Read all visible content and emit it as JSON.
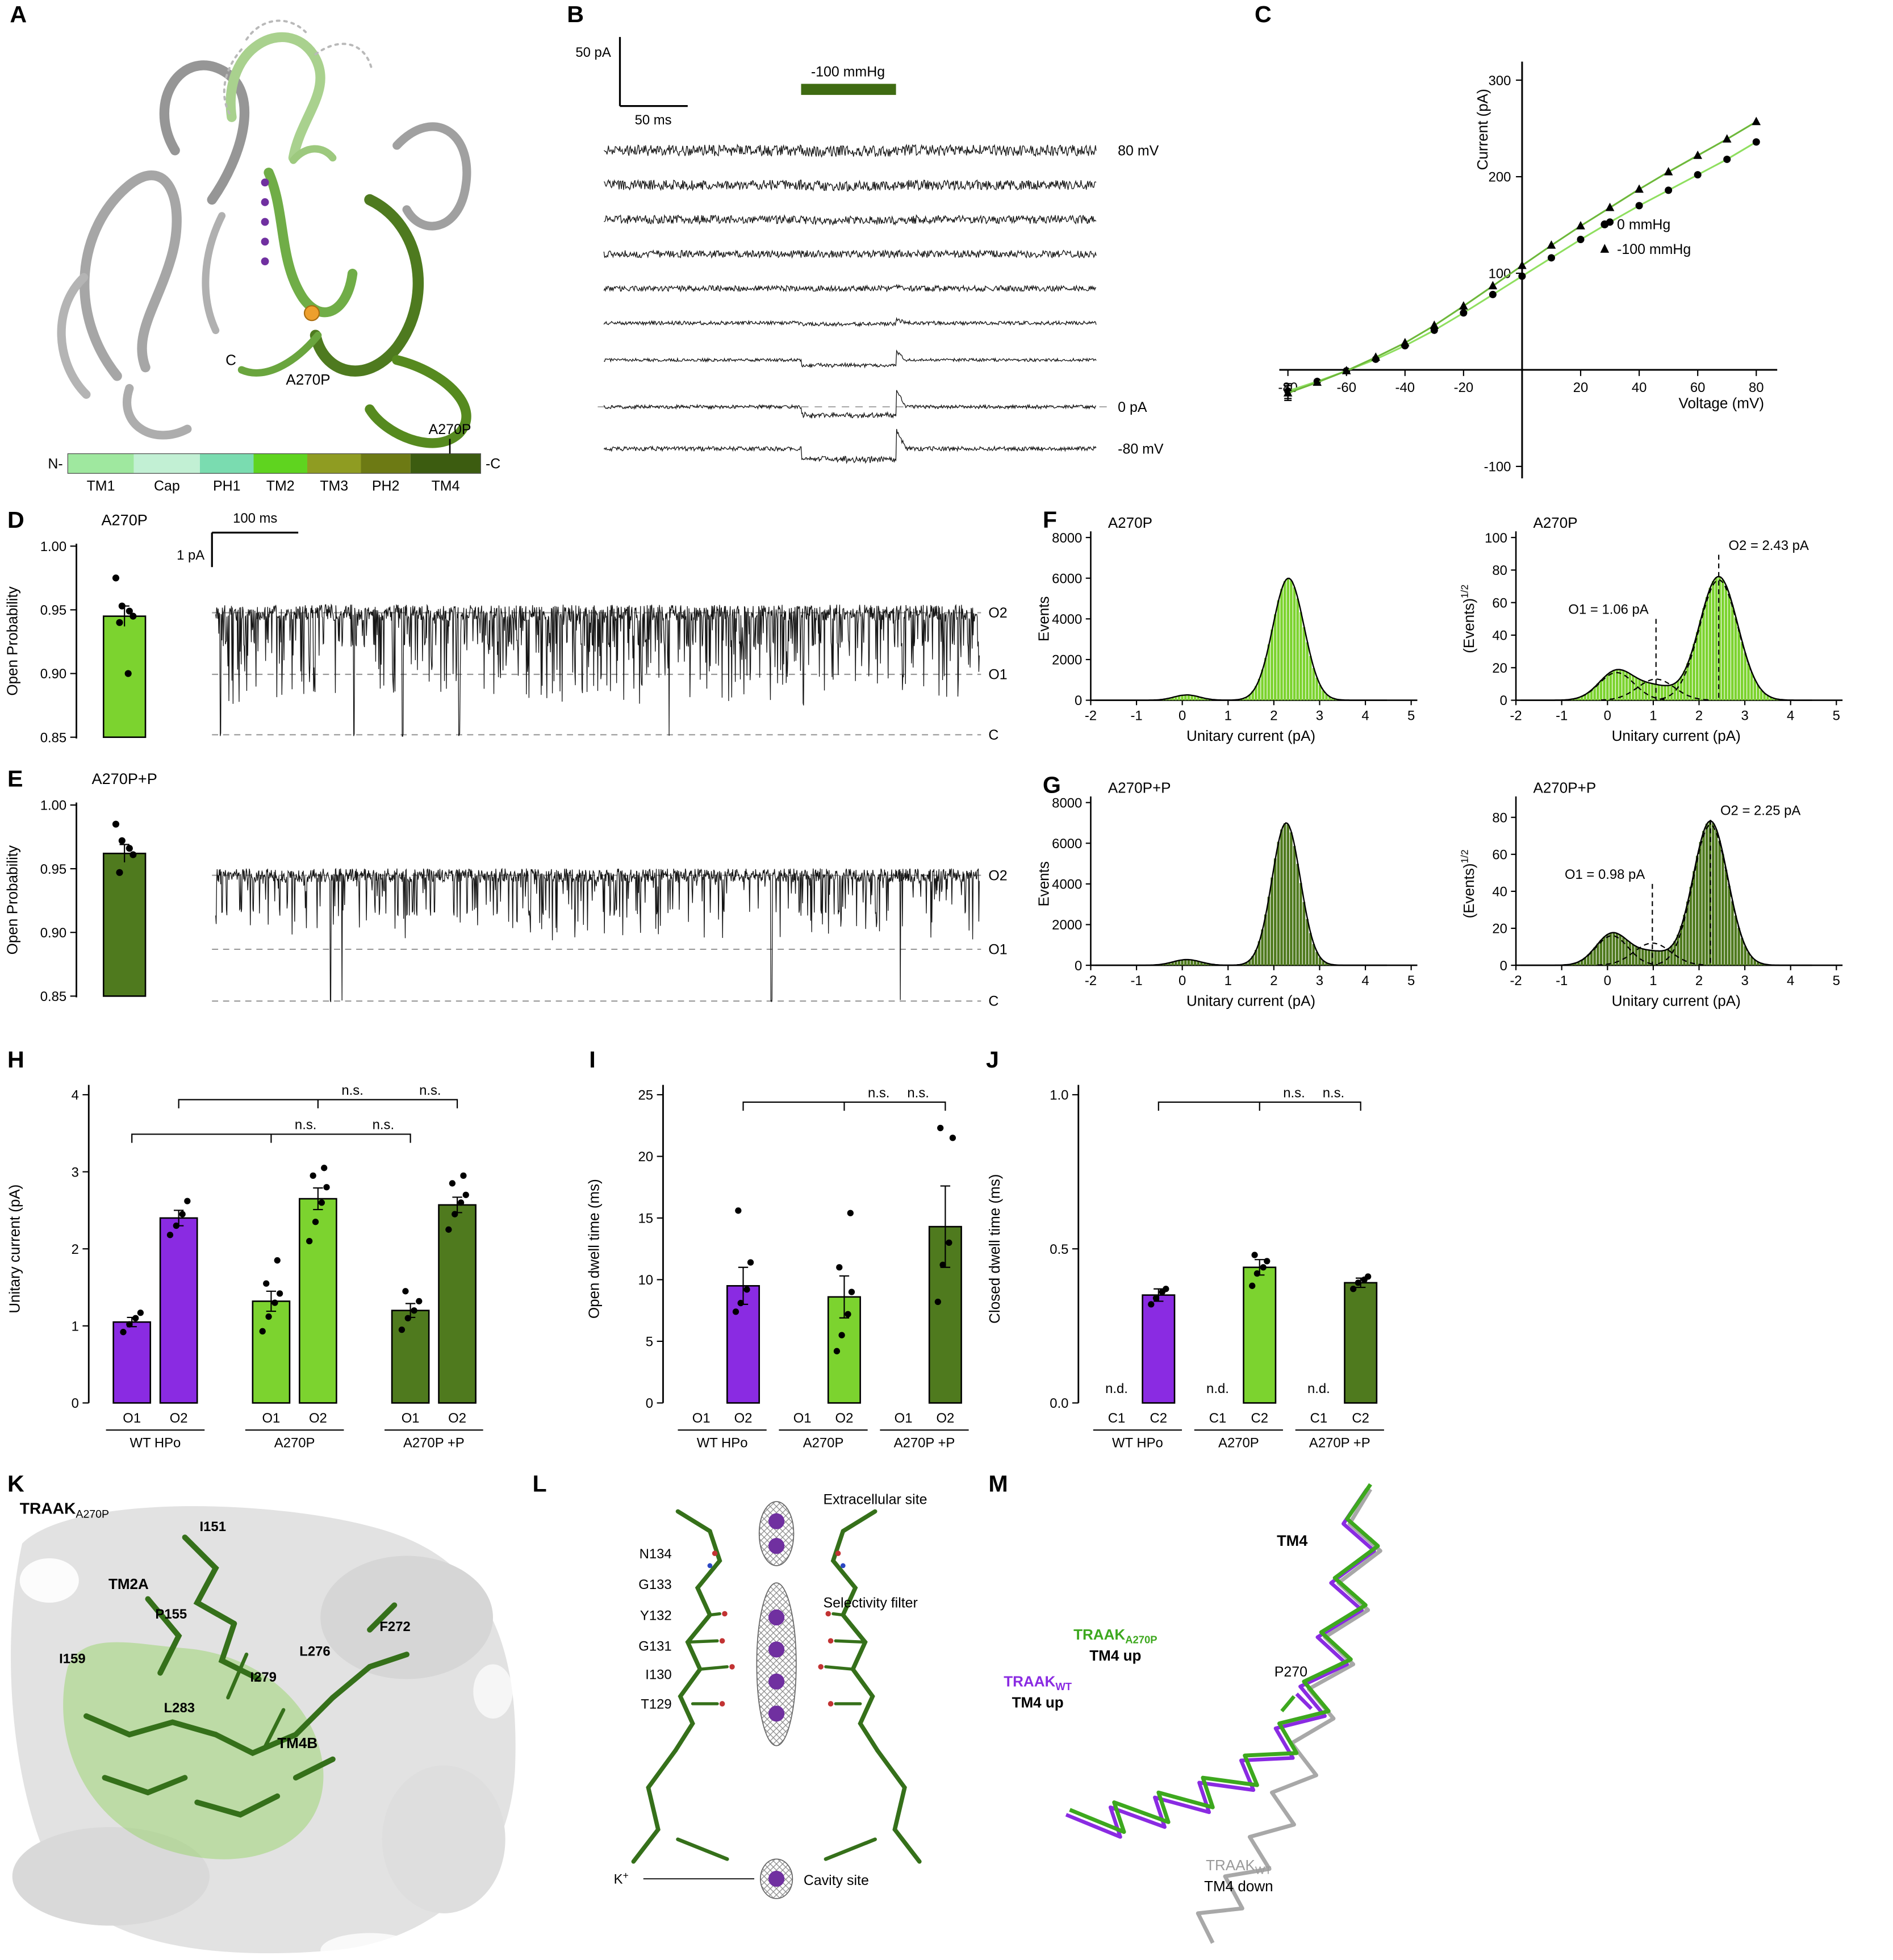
{
  "colors": {
    "purple": "#8a2be2",
    "light_green": "#7cd32f",
    "dark_green": "#4f7a1e",
    "pressure_green": "#3f6b12",
    "ion_purple": "#7030a0",
    "mutation_orange": "#ed9f2e"
  },
  "panel_labels": {
    "A": "A",
    "B": "B",
    "C": "C",
    "D": "D",
    "E": "E",
    "F": "F",
    "G": "G",
    "H": "H",
    "I": "I",
    "J": "J",
    "K": "K",
    "L": "L",
    "M": "M"
  },
  "panelA": {
    "c_term": "C",
    "mutation": "A270P",
    "bar": {
      "n": "N-",
      "c": "-C",
      "mutation": "A270P",
      "segments": [
        {
          "label": "TM1",
          "color": "#9fe89f",
          "w": 16
        },
        {
          "label": "Cap",
          "color": "#c2f0d4",
          "w": 16
        },
        {
          "label": "PH1",
          "color": "#7adcb0",
          "w": 13
        },
        {
          "label": "TM2",
          "color": "#5fd41f",
          "w": 13
        },
        {
          "label": "TM3",
          "color": "#8f9c22",
          "w": 13
        },
        {
          "label": "PH2",
          "color": "#6d7a14",
          "w": 12
        },
        {
          "label": "TM4",
          "color": "#3c5c10",
          "w": 17
        }
      ]
    }
  },
  "panelB": {
    "scale_pa": "50 pA",
    "scale_ms": "50 ms",
    "pressure": "-100 mmHg",
    "pressure_color": "#3f6b12",
    "v_top": "80 mV",
    "zero": "0 pA",
    "v_bottom": "-80 mV"
  },
  "panelD": {
    "title": "A270P",
    "ylabel": "Open Probability",
    "yticks": [
      "1.00",
      "0.95",
      "0.90",
      "0.85"
    ],
    "bar_value": 0.945,
    "bar_err": 0.008,
    "bar_color": "#7cd32f",
    "dots": [
      0.975,
      0.953,
      0.949,
      0.945,
      0.94,
      0.9
    ],
    "scale_time": "100 ms",
    "scale_amp": "1 pA",
    "levels": [
      "O2",
      "O1",
      "C"
    ]
  },
  "panelE": {
    "title": "A270P+P",
    "ylabel": "Open Probability",
    "yticks": [
      "1.00",
      "0.95",
      "0.90",
      "0.85"
    ],
    "bar_value": 0.962,
    "bar_err": 0.007,
    "bar_color": "#4f7a1e",
    "dots": [
      0.985,
      0.972,
      0.966,
      0.961,
      0.947
    ],
    "levels": [
      "O2",
      "O1",
      "C"
    ]
  },
  "panelK": {
    "title_main": "TRAAK",
    "title_sub": "A270P",
    "tm2a": "TM2A",
    "tm4b": "TM4B",
    "i151": "I151",
    "p155": "P155",
    "i159": "I159",
    "l283": "L283",
    "i279": "I279",
    "l276": "L276",
    "f272": "F272"
  },
  "panelL": {
    "extracellular": "Extracellular site",
    "filter": "Selectivity filter",
    "cavity": "Cavity site",
    "k": "K",
    "k_sup": "+",
    "n134": "N134",
    "g133": "G133",
    "y132": "Y132",
    "g131": "G131",
    "i130": "I130",
    "t129": "T129"
  },
  "panelM": {
    "tm4": "TM4",
    "p270": "P270",
    "green": {
      "main": "TRAAK",
      "sub": "A270P",
      "line2": "TM4 up",
      "color": "#3da81e"
    },
    "purple": {
      "main": "TRAAK",
      "sub": "WT",
      "line2": "TM4 up",
      "color": "#8a2be2"
    },
    "gray": {
      "main": "TRAAK",
      "sub": "WT",
      "line2": "TM4 down",
      "color": "#9a9a9a"
    }
  },
  "chart_data": [
    {
      "id": "iv",
      "type": "line",
      "title": "",
      "xlabel": "Voltage (mV)",
      "ylabel": "Current (pA)",
      "xlim": [
        -80,
        80
      ],
      "ylim": [
        -100,
        300
      ],
      "xticks": [
        -80,
        -60,
        -40,
        -20,
        20,
        40,
        60,
        80
      ],
      "yticks": [
        -100,
        100,
        200,
        300
      ],
      "legend_position": "right-center",
      "series": [
        {
          "name": "0 mmHg",
          "marker": "circle",
          "color": "#8fdf5f",
          "values": [
            [
              -80,
              -22
            ],
            [
              -70,
              -12
            ],
            [
              -60,
              -1
            ],
            [
              -50,
              11
            ],
            [
              -40,
              25
            ],
            [
              -30,
              41
            ],
            [
              -20,
              59
            ],
            [
              -10,
              78
            ],
            [
              0,
              97
            ],
            [
              10,
              116
            ],
            [
              20,
              135
            ],
            [
              30,
              153
            ],
            [
              40,
              170
            ],
            [
              50,
              186
            ],
            [
              60,
              202
            ],
            [
              70,
              218
            ],
            [
              80,
              236
            ]
          ]
        },
        {
          "name": "-100 mmHg",
          "marker": "triangle",
          "color": "#6db83a",
          "values": [
            [
              -80,
              -24
            ],
            [
              -70,
              -13
            ],
            [
              -60,
              -1
            ],
            [
              -50,
              13
            ],
            [
              -40,
              28
            ],
            [
              -30,
              46
            ],
            [
              -20,
              66
            ],
            [
              -10,
              87
            ],
            [
              0,
              108
            ],
            [
              10,
              129
            ],
            [
              20,
              149
            ],
            [
              30,
              168
            ],
            [
              40,
              187
            ],
            [
              50,
              205
            ],
            [
              60,
              222
            ],
            [
              70,
              239
            ],
            [
              80,
              257
            ]
          ]
        }
      ]
    },
    {
      "id": "histF1",
      "type": "bar",
      "title": "A270P",
      "xlabel": "Unitary current (pA)",
      "ylabel": "Events",
      "xlim": [
        -2,
        5
      ],
      "ylim": [
        0,
        8000
      ],
      "xticks": [
        -2,
        -1,
        0,
        1,
        2,
        3,
        4,
        5
      ],
      "yticks": [
        0,
        2000,
        4000,
        6000,
        8000
      ],
      "fill": "#7cd32f",
      "components": [
        {
          "mu": 2.32,
          "sigma": 0.34,
          "amp": 6000
        },
        {
          "mu": 0.1,
          "sigma": 0.28,
          "amp": 260
        }
      ]
    },
    {
      "id": "histF2",
      "type": "bar",
      "title": "A270P",
      "xlabel": "Unitary current (pA)",
      "ylabel": "(Events)",
      "ylabel_sup": "1/2",
      "xlim": [
        -2,
        5
      ],
      "ylim": [
        0,
        100
      ],
      "xticks": [
        -2,
        -1,
        0,
        1,
        2,
        3,
        4,
        5
      ],
      "yticks": [
        0,
        20,
        40,
        60,
        80,
        100
      ],
      "fill": "#7cd32f",
      "components": [
        {
          "mu": 2.43,
          "sigma": 0.42,
          "amp": 76
        },
        {
          "mu": 0.2,
          "sigma": 0.38,
          "amp": 18
        },
        {
          "mu": 1.06,
          "sigma": 0.4,
          "amp": 8
        }
      ],
      "dashed": [
        {
          "mu": 1.06,
          "sigma": 0.4,
          "amp": 13
        },
        {
          "mu": 2.43,
          "sigma": 0.42,
          "amp": 74
        },
        {
          "mu": 0.2,
          "sigma": 0.38,
          "amp": 17
        }
      ],
      "annotations": [
        {
          "label": "O1 = 1.06 pA",
          "x": 1.06
        },
        {
          "label": "O2 = 2.43 pA",
          "x": 2.43
        }
      ]
    },
    {
      "id": "histG1",
      "type": "bar",
      "title": "A270P+P",
      "xlabel": "Unitary current (pA)",
      "ylabel": "Events",
      "xlim": [
        -2,
        5
      ],
      "ylim": [
        0,
        8000
      ],
      "xticks": [
        -2,
        -1,
        0,
        1,
        2,
        3,
        4,
        5
      ],
      "yticks": [
        0,
        2000,
        4000,
        6000,
        8000
      ],
      "fill": "#4f7a1e",
      "components": [
        {
          "mu": 2.27,
          "sigma": 0.31,
          "amp": 7000
        },
        {
          "mu": 0.1,
          "sigma": 0.3,
          "amp": 280
        }
      ]
    },
    {
      "id": "histG2",
      "type": "bar",
      "title": "A270P+P",
      "xlabel": "Unitary current (pA)",
      "ylabel": "(Events)",
      "ylabel_sup": "1/2",
      "xlim": [
        -2,
        5
      ],
      "ylim": [
        0,
        88
      ],
      "xticks": [
        -2,
        -1,
        0,
        1,
        2,
        3,
        4,
        5
      ],
      "yticks": [
        0,
        20,
        40,
        60,
        80
      ],
      "fill": "#4f7a1e",
      "components": [
        {
          "mu": 2.25,
          "sigma": 0.38,
          "amp": 78
        },
        {
          "mu": 0.1,
          "sigma": 0.35,
          "amp": 17
        },
        {
          "mu": 0.98,
          "sigma": 0.4,
          "amp": 7
        }
      ],
      "dashed": [
        {
          "mu": 0.98,
          "sigma": 0.4,
          "amp": 12
        },
        {
          "mu": 2.25,
          "sigma": 0.38,
          "amp": 76
        },
        {
          "mu": 0.1,
          "sigma": 0.35,
          "amp": 16
        }
      ],
      "annotations": [
        {
          "label": "O1 = 0.98 pA",
          "x": 0.98
        },
        {
          "label": "O2 = 2.25 pA",
          "x": 2.25
        }
      ]
    },
    {
      "id": "barH",
      "type": "bar",
      "ylabel": "Unitary current (pA)",
      "ylim": 4,
      "yticks": [
        "0",
        "1",
        "2",
        "3",
        "4"
      ],
      "groups": [
        "WT HPo",
        "A270P",
        "A270P +P"
      ],
      "bar_labels": [
        "O1",
        "O2"
      ],
      "colors": [
        "#8a2be2",
        "#7cd32f",
        "#4f7a1e"
      ],
      "values": [
        [
          1.05,
          2.4
        ],
        [
          1.32,
          2.65
        ],
        [
          1.2,
          2.57
        ]
      ],
      "errors": [
        [
          0.06,
          0.1
        ],
        [
          0.13,
          0.14
        ],
        [
          0.09,
          0.1
        ]
      ],
      "dots": [
        [
          [
            0.92,
            1.02,
            1.1,
            1.17
          ],
          [
            2.18,
            2.3,
            2.45,
            2.62
          ]
        ],
        [
          [
            0.93,
            1.12,
            1.3,
            1.42,
            1.55,
            1.85
          ],
          [
            2.1,
            2.35,
            2.6,
            2.8,
            2.95,
            3.05
          ]
        ],
        [
          [
            0.95,
            1.1,
            1.2,
            1.32,
            1.45
          ],
          [
            2.25,
            2.45,
            2.6,
            2.7,
            2.85,
            2.95
          ]
        ]
      ],
      "ns": [
        "n.s.",
        "n.s.",
        "n.s.",
        "n.s."
      ]
    },
    {
      "id": "barI",
      "type": "bar",
      "ylabel": "Open dwell time (ms)",
      "ylim": 25,
      "yticks": [
        "0",
        "5",
        "10",
        "15",
        "20",
        "25"
      ],
      "groups": [
        "WT HPo",
        "A270P",
        "A270P +P"
      ],
      "bar_labels": [
        "O1",
        "O2"
      ],
      "colors": [
        "#8a2be2",
        "#7cd32f",
        "#4f7a1e"
      ],
      "values": [
        [
          null,
          9.5
        ],
        [
          null,
          8.6
        ],
        [
          null,
          14.3
        ]
      ],
      "errors": [
        [
          0,
          1.5
        ],
        [
          0,
          1.7
        ],
        [
          0,
          3.3
        ]
      ],
      "dots": [
        [
          [],
          [
            7.4,
            8.1,
            9.2,
            11.4,
            15.6
          ]
        ],
        [
          [],
          [
            4.2,
            5.5,
            7.2,
            9.0,
            11.0,
            15.4
          ]
        ],
        [
          [],
          [
            8.2,
            11.2,
            13.0,
            21.5,
            22.3
          ]
        ]
      ],
      "ns": [
        "n.s.",
        "n.s."
      ]
    },
    {
      "id": "barJ",
      "type": "bar",
      "ylabel": "Closed dwell time (ms)",
      "ylim": 1.0,
      "yticks": [
        "0.0",
        "0.5",
        "1.0"
      ],
      "groups": [
        "WT HPo",
        "A270P",
        "A270P +P"
      ],
      "bar_labels": [
        "C1",
        "C2"
      ],
      "colors": [
        "#8a2be2",
        "#7cd32f",
        "#4f7a1e"
      ],
      "values": [
        [
          null,
          0.35
        ],
        [
          null,
          0.44
        ],
        [
          null,
          0.39
        ]
      ],
      "errors": [
        [
          0,
          0.02
        ],
        [
          0,
          0.025
        ],
        [
          0,
          0.015
        ]
      ],
      "nd": "n.d.",
      "dots": [
        [
          [],
          [
            0.32,
            0.34,
            0.36,
            0.37
          ]
        ],
        [
          [],
          [
            0.38,
            0.42,
            0.44,
            0.46,
            0.48
          ]
        ],
        [
          [],
          [
            0.37,
            0.39,
            0.4,
            0.41
          ]
        ]
      ],
      "ns": [
        "n.s.",
        "n.s."
      ]
    }
  ]
}
